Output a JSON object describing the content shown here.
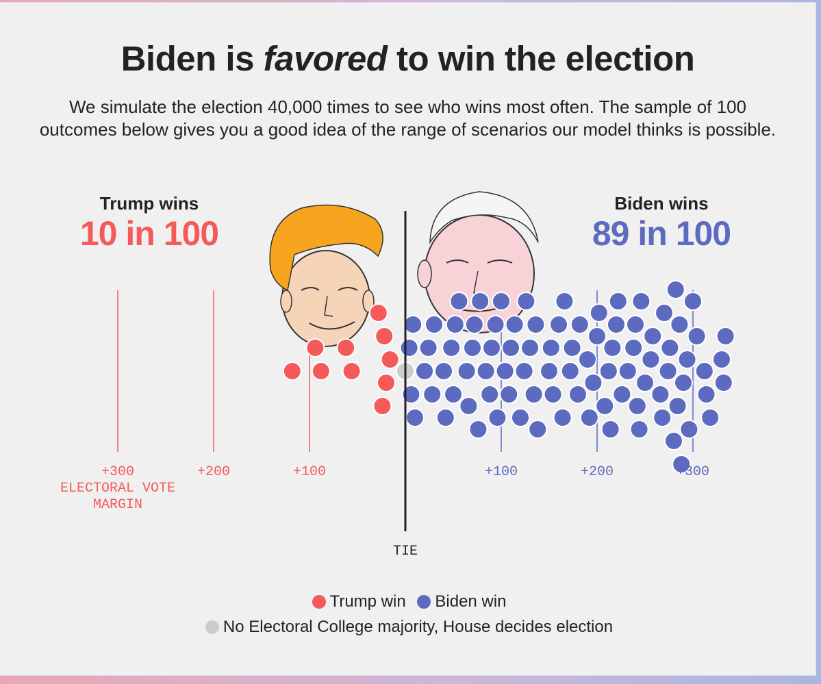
{
  "title": {
    "pre": "Biden is ",
    "emphasis": "favored",
    "post": " to win the election"
  },
  "subtitle": "We simulate the election 40,000 times to see who wins most often. The sample of 100 outcomes below gives you a good idea of the range of scenarios our model thinks is possible.",
  "trump": {
    "label": "Trump wins",
    "count": "10 in 100",
    "color": "#f55a5a"
  },
  "biden": {
    "label": "Biden wins",
    "count": "89 in 100",
    "color": "#5c6bbf"
  },
  "tie_color": "#cccccc",
  "chart_data": {
    "type": "scatter",
    "title": "Biden is favored to win the election",
    "xlabel": "ELECTORAL VOTE MARGIN",
    "x_ticks_trump": [
      "+300",
      "+200",
      "+100"
    ],
    "x_ticks_biden": [
      "+100",
      "+200",
      "+300"
    ],
    "tie_label": "TIE",
    "series": [
      {
        "name": "Trump win",
        "margins": [
          -118,
          -94,
          -88,
          -62,
          -56,
          -28,
          -24,
          -22,
          -20,
          -16
        ]
      },
      {
        "name": "No Electoral College majority, House decides election",
        "margins": [
          0
        ]
      },
      {
        "name": "Biden win",
        "margins": [
          4,
          6,
          8,
          10,
          20,
          24,
          28,
          30,
          40,
          42,
          48,
          50,
          52,
          56,
          64,
          66,
          70,
          72,
          76,
          78,
          84,
          88,
          90,
          94,
          96,
          100,
          104,
          108,
          110,
          114,
          120,
          124,
          126,
          130,
          134,
          136,
          138,
          150,
          152,
          154,
          160,
          164,
          166,
          172,
          174,
          180,
          182,
          190,
          192,
          196,
          200,
          202,
          208,
          212,
          214,
          216,
          220,
          222,
          226,
          232,
          238,
          240,
          242,
          244,
          246,
          250,
          256,
          258,
          266,
          268,
          270,
          274,
          276,
          280,
          282,
          284,
          286,
          288,
          290,
          294,
          296,
          300,
          304,
          312,
          314,
          318,
          330,
          332,
          334
        ]
      }
    ]
  },
  "legend": [
    {
      "label": "Trump win"
    },
    {
      "label": "Biden win"
    },
    {
      "label": "No Electoral College majority, House decides election"
    }
  ]
}
